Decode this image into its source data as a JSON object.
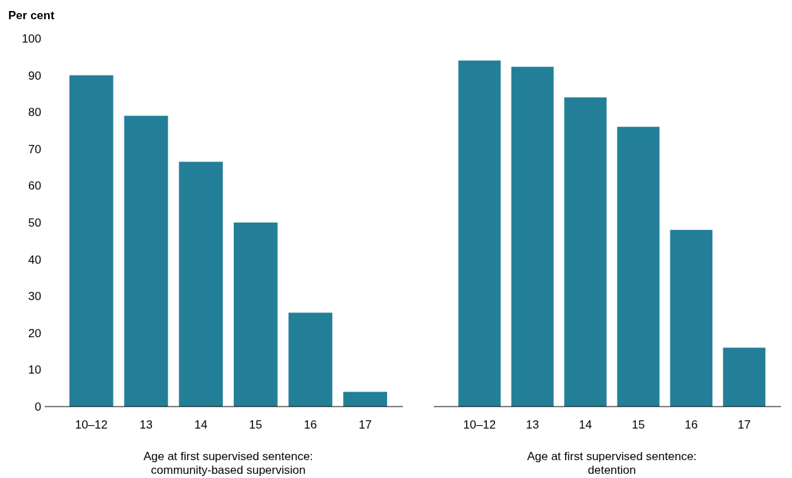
{
  "chart_data": [
    {
      "type": "bar",
      "ylabel": "Per cent",
      "xlabel": "Age at first supervised sentence: community-based supervision",
      "categories": [
        "10–12",
        "13",
        "14",
        "15",
        "16",
        "17"
      ],
      "values": [
        90,
        79,
        66.5,
        50,
        25.5,
        4
      ],
      "color": "#237f98",
      "ylim": [
        0,
        100
      ],
      "yticks": [
        0,
        10,
        20,
        30,
        40,
        50,
        60,
        70,
        80,
        90,
        100
      ]
    },
    {
      "type": "bar",
      "xlabel": "Age at first supervised sentence: detention",
      "categories": [
        "10–12",
        "13",
        "14",
        "15",
        "16",
        "17"
      ],
      "values": [
        94,
        92.3,
        84,
        76,
        48,
        16
      ],
      "color": "#237f98",
      "ylim": [
        0,
        100
      ],
      "yticks": [
        0,
        10,
        20,
        30,
        40,
        50,
        60,
        70,
        80,
        90,
        100
      ],
      "tick_labels": "x"
    }
  ]
}
